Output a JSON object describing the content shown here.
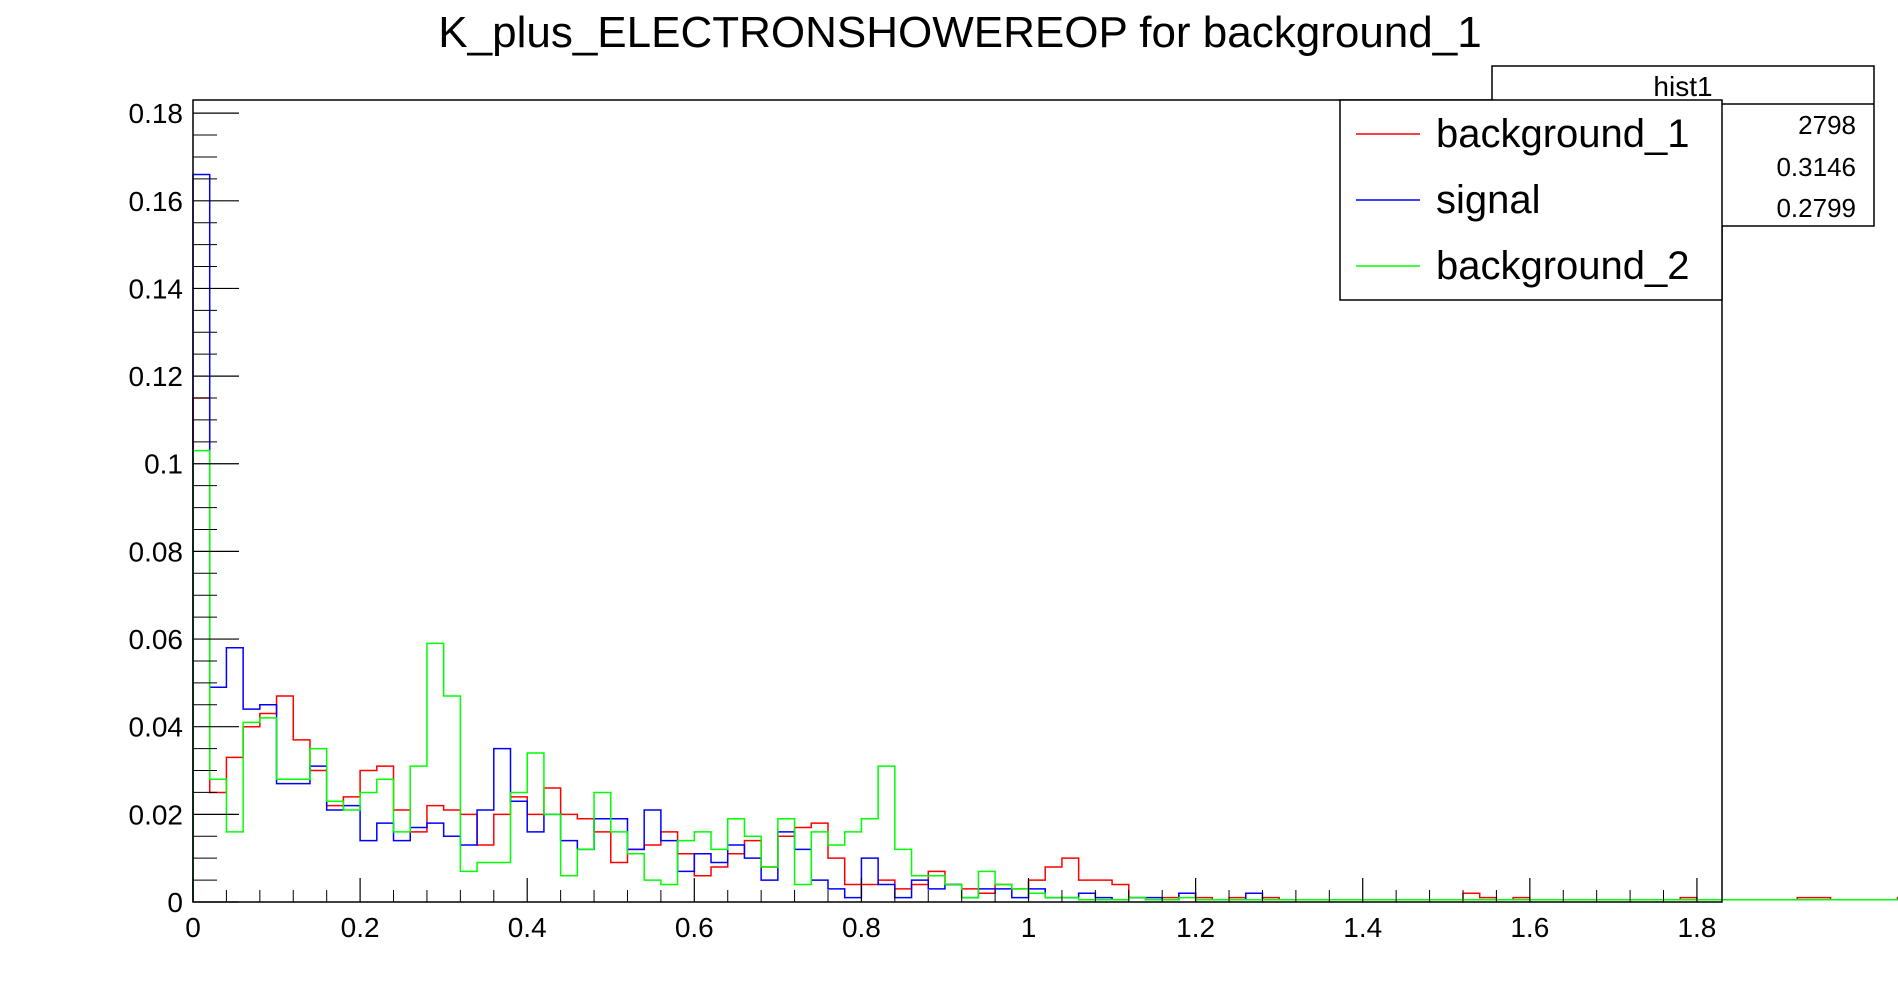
{
  "chart_data": {
    "type": "histogram",
    "title": "K_plus_ELECTRONSHOWEREOP for background_1",
    "xlim": [
      0,
      1.83
    ],
    "ylim": [
      0,
      0.183
    ],
    "x_ticks": [
      0,
      0.2,
      0.4,
      0.6,
      0.8,
      1,
      1.2,
      1.4,
      1.6,
      1.8
    ],
    "x_tick_labels": [
      "0",
      "0.2",
      "0.4",
      "0.6",
      "0.8",
      "1",
      "1.2",
      "1.4",
      "1.6",
      "1.8"
    ],
    "y_ticks": [
      0,
      0.02,
      0.04,
      0.06,
      0.08,
      0.1,
      0.12,
      0.14,
      0.16,
      0.18
    ],
    "y_tick_labels": [
      "0",
      "0.02",
      "0.04",
      "0.06",
      "0.08",
      "0.1",
      "0.12",
      "0.14",
      "0.16",
      "0.18"
    ],
    "bin_width": 0.02,
    "legend_position": "top-right",
    "series": [
      {
        "name": "background_1",
        "color": "#ff0000",
        "values": [
          0.115,
          0.025,
          0.033,
          0.04,
          0.043,
          0.047,
          0.037,
          0.03,
          0.022,
          0.024,
          0.03,
          0.031,
          0.021,
          0.016,
          0.022,
          0.021,
          0.02,
          0.013,
          0.02,
          0.024,
          0.02,
          0.026,
          0.02,
          0.019,
          0.016,
          0.009,
          0.012,
          0.013,
          0.016,
          0.011,
          0.006,
          0.008,
          0.011,
          0.014,
          0.008,
          0.015,
          0.017,
          0.018,
          0.01,
          0.004,
          0.004,
          0.005,
          0.003,
          0.004,
          0.007,
          0.004,
          0.003,
          0.002,
          0.004,
          0.003,
          0.005,
          0.008,
          0.01,
          0.005,
          0.005,
          0.004,
          0.001,
          0.0005,
          0.001,
          0.002,
          0.001,
          0.0005,
          0.001,
          0.0005,
          0.001,
          0.0005,
          0.0005,
          0.0005,
          0.0005,
          0.0005,
          0.0005,
          0.0005,
          0.0005,
          0.0005,
          0.0005,
          0.0005,
          0.002,
          0.001,
          0.0005,
          0.001,
          0.0005,
          0.0005,
          0.0005,
          0.0005,
          0.0005,
          0.0005,
          0.0005,
          0.0005,
          0.0005,
          0.001,
          0.0005,
          0.0005,
          0.0005,
          0.0005,
          0.0005,
          0.0005,
          0.001,
          0.001,
          0.0005,
          0.0005,
          0.0005,
          0.0005,
          0.001,
          0.0005,
          0.0005,
          0.0005,
          0.0005,
          0.0005,
          0.0005,
          0.0005,
          0.0005,
          0.0005
        ]
      },
      {
        "name": "signal",
        "color": "#0000ff",
        "values": [
          0.166,
          0.049,
          0.058,
          0.044,
          0.045,
          0.027,
          0.027,
          0.031,
          0.021,
          0.022,
          0.014,
          0.018,
          0.014,
          0.017,
          0.018,
          0.015,
          0.013,
          0.021,
          0.035,
          0.023,
          0.016,
          0.02,
          0.014,
          0.012,
          0.019,
          0.019,
          0.012,
          0.021,
          0.014,
          0.007,
          0.011,
          0.009,
          0.013,
          0.01,
          0.005,
          0.016,
          0.012,
          0.005,
          0.003,
          0.001,
          0.01,
          0.004,
          0.001,
          0.005,
          0.003,
          0.004,
          0.001,
          0.003,
          0.003,
          0.001,
          0.003,
          0.001,
          0.001,
          0.002,
          0.001,
          0.0005,
          0.001,
          0.001,
          0.0005,
          0.002,
          0.0005,
          0.0005,
          0.0005,
          0.002,
          0.0005,
          0.0005,
          0.0005,
          0.0005,
          0.0005,
          0.0005,
          0.0005,
          0.0005,
          0.0005,
          0.0005,
          0.0005,
          0.0005,
          0.0005,
          0.0005,
          0.0005,
          0.0005,
          0.0005,
          0.0005,
          0.0005,
          0.0005,
          0.0005,
          0.0005,
          0.0005,
          0.0005,
          0.0005,
          0.0005,
          0.0005,
          0.0005,
          0.0005,
          0.0005,
          0.0005,
          0.0005,
          0.0005,
          0.0005,
          0.0005,
          0.0005,
          0.0005,
          0.0005,
          0.0005,
          0.0005,
          0.0005,
          0.0005,
          0.0005,
          0.0005,
          0.0005,
          0.0005,
          0.0005,
          0.0005
        ]
      },
      {
        "name": "background_2",
        "color": "#00ff00",
        "values": [
          0.103,
          0.028,
          0.016,
          0.041,
          0.042,
          0.028,
          0.028,
          0.035,
          0.023,
          0.021,
          0.025,
          0.028,
          0.016,
          0.031,
          0.059,
          0.047,
          0.007,
          0.009,
          0.009,
          0.025,
          0.034,
          0.02,
          0.006,
          0.012,
          0.025,
          0.016,
          0.011,
          0.005,
          0.004,
          0.014,
          0.016,
          0.012,
          0.019,
          0.015,
          0.008,
          0.019,
          0.004,
          0.016,
          0.013,
          0.016,
          0.019,
          0.031,
          0.012,
          0.006,
          0.006,
          0.004,
          0.001,
          0.007,
          0.004,
          0.003,
          0.002,
          0.001,
          0.001,
          0.0005,
          0.0005,
          0.0005,
          0.001,
          0.0005,
          0.0005,
          0.001,
          0.0005,
          0.0005,
          0.0005,
          0.0005,
          0.0005,
          0.0005,
          0.0005,
          0.0005,
          0.0005,
          0.0005,
          0.0005,
          0.0005,
          0.0005,
          0.0005,
          0.0005,
          0.0005,
          0.0005,
          0.0005,
          0.0005,
          0.0005,
          0.0005,
          0.0005,
          0.0005,
          0.0005,
          0.0005,
          0.0005,
          0.0005,
          0.0005,
          0.0005,
          0.0005,
          0.0005,
          0.0005,
          0.0005,
          0.0005,
          0.0005,
          0.0005,
          0.0005,
          0.0005,
          0.0005,
          0.0005,
          0.0005,
          0.0005,
          0.0005,
          0.0005,
          0.0005,
          0.0005,
          0.0005,
          0.0005,
          0.0005,
          0.0005,
          0.0005,
          0.0005
        ]
      }
    ]
  },
  "stats_box": {
    "title": "hist1",
    "values": [
      "2798",
      "0.3146",
      "0.2799"
    ]
  }
}
